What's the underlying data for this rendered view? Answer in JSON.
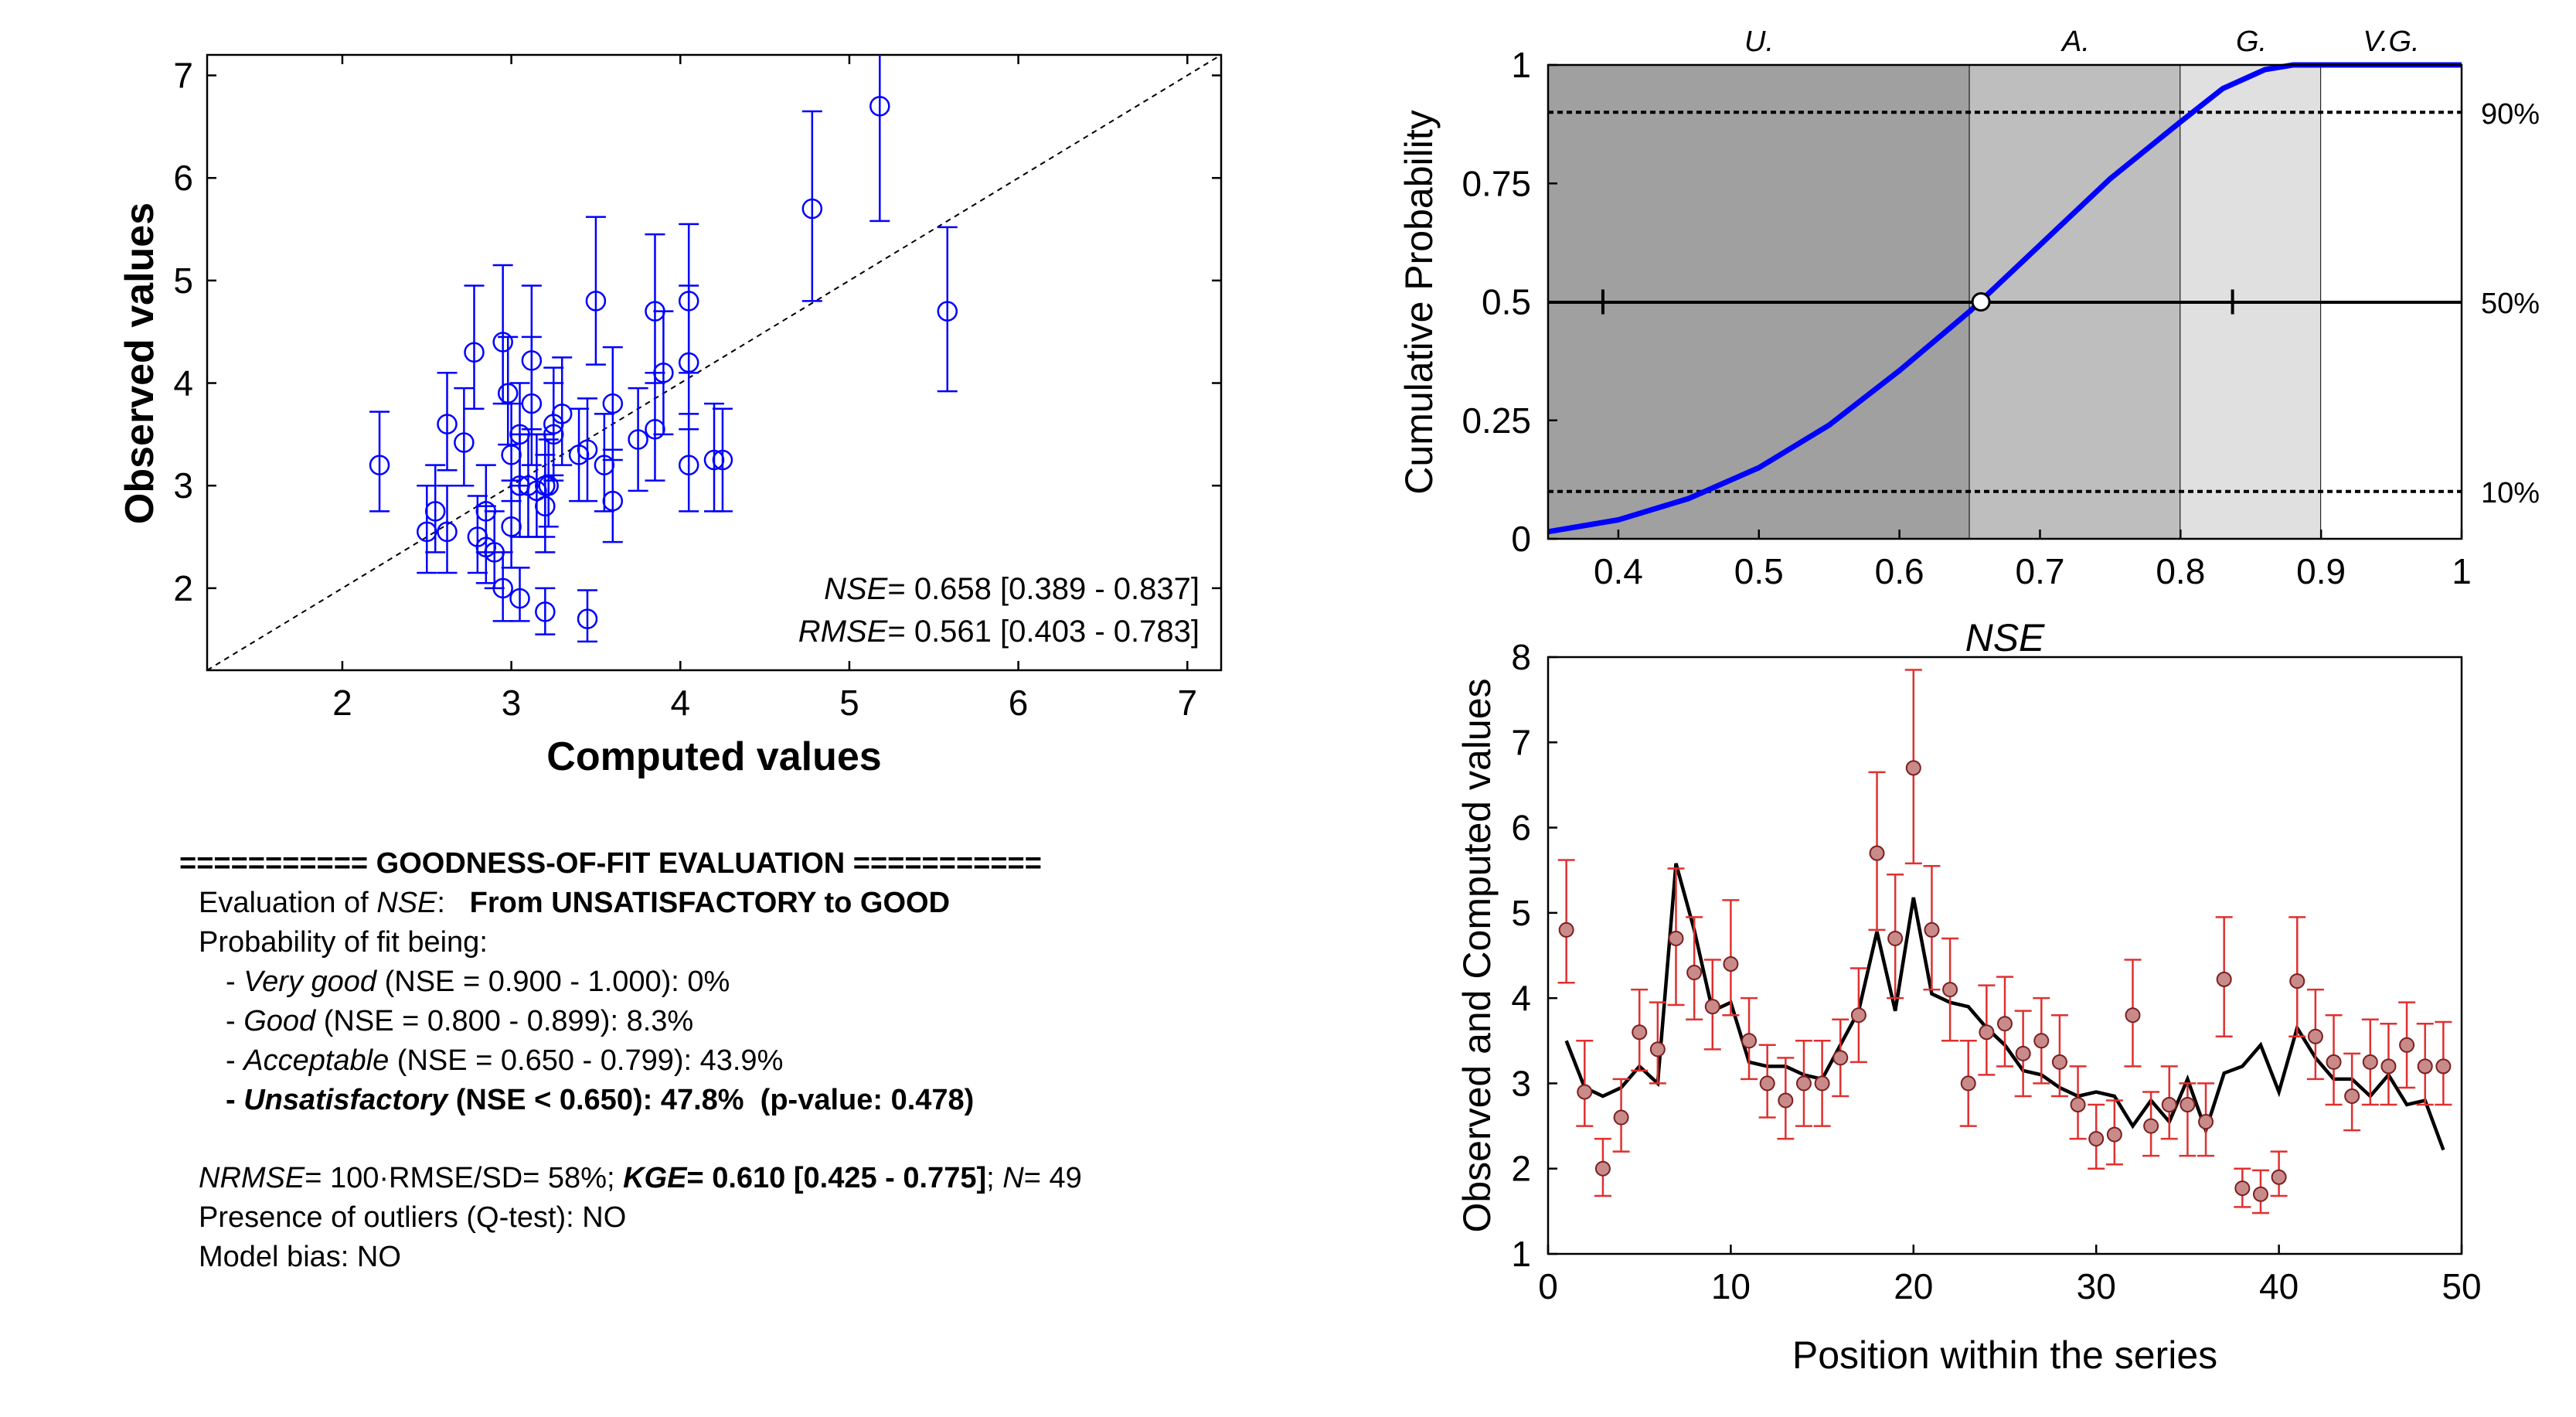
{
  "scatter_panel": {
    "xlabel": "Computed values",
    "ylabel": "Observed values",
    "stat_lines": [
      {
        "name": "NSE",
        "text": "= 0.658 [0.389 - 0.837]"
      },
      {
        "name": "RMSE",
        "text": "= 0.561 [0.403 - 0.783]"
      }
    ]
  },
  "cdf_panel": {
    "xlabel": "NSE",
    "ylabel": "Cumulative Probability",
    "class_labels": [
      "U.",
      "A.",
      "G.",
      "V.G."
    ],
    "percent_labels": [
      "90%",
      "50%",
      "10%"
    ]
  },
  "series_panel": {
    "xlabel": "Position within the series",
    "ylabel": "Observed and Computed values"
  },
  "report": {
    "header": "=========== GOODNESS-OF-FIT EVALUATION ===========",
    "eval_prefix": "Evaluation of ",
    "eval_metric": "NSE",
    "eval_sep": ":   ",
    "eval_result": "From UNSATISFACTORY to GOOD",
    "prob_title": "Probability of fit being:",
    "classes": [
      {
        "dash": "- ",
        "name": "Very good",
        "range": " (NSE = 0.900 - 1.000): 0%",
        "bold": false
      },
      {
        "dash": "- ",
        "name": "Good",
        "range": " (NSE = 0.800 - 0.899): 8.3%",
        "bold": false
      },
      {
        "dash": "- ",
        "name": "Acceptable",
        "range": " (NSE = 0.650 - 0.799): 43.9%",
        "bold": false
      },
      {
        "dash": "- ",
        "name": "Unsatisfactory",
        "range": " (NSE < 0.650): 47.8%  (p-value: 0.478)",
        "bold": true
      }
    ],
    "nrmse_label": "NRMSE",
    "nrmse_text": "= 100·RMSE/SD= 58%; ",
    "kge_label": "KGE",
    "kge_text": "= 0.610 [0.425 - 0.775]",
    "n_sep": "; ",
    "n_label": "N",
    "n_text": "= 49",
    "outliers": "Presence of outliers (Q-test): NO",
    "bias": "Model bias: NO"
  },
  "chart_data": [
    {
      "type": "scatter",
      "title": "",
      "xlabel": "Computed values",
      "ylabel": "Observed values",
      "xlim": [
        1.2,
        7.2
      ],
      "ylim": [
        1.2,
        7.2
      ],
      "xticks": [
        2,
        3,
        4,
        5,
        6,
        7
      ],
      "yticks": [
        2,
        3,
        4,
        5,
        6,
        7
      ],
      "reference_line": "1:1 dashed",
      "marker_color": "#0000ff",
      "points": [
        {
          "x": 3.5,
          "y": 4.8,
          "lo": 4.18,
          "hi": 5.62
        },
        {
          "x": 3.15,
          "y": 2.95,
          "lo": 2.5,
          "hi": 3.5
        },
        {
          "x": 2.95,
          "y": 2.0,
          "lo": 1.68,
          "hi": 2.35
        },
        {
          "x": 3.0,
          "y": 2.6,
          "lo": 2.2,
          "hi": 3.05
        },
        {
          "x": 2.62,
          "y": 3.6,
          "lo": 3.15,
          "hi": 4.1
        },
        {
          "x": 2.72,
          "y": 3.42,
          "lo": 3.0,
          "hi": 3.95
        },
        {
          "x": 5.58,
          "y": 4.7,
          "lo": 3.92,
          "hi": 5.52
        },
        {
          "x": 2.78,
          "y": 4.3,
          "lo": 3.75,
          "hi": 4.95
        },
        {
          "x": 2.98,
          "y": 3.9,
          "lo": 3.4,
          "hi": 4.45
        },
        {
          "x": 2.95,
          "y": 4.4,
          "lo": 3.8,
          "hi": 5.15
        },
        {
          "x": 3.25,
          "y": 3.5,
          "lo": 3.05,
          "hi": 4.0
        },
        {
          "x": 3.22,
          "y": 3.0,
          "lo": 2.6,
          "hi": 3.45
        },
        {
          "x": 3.2,
          "y": 2.8,
          "lo": 2.35,
          "hi": 3.3
        },
        {
          "x": 3.2,
          "y": 3.0,
          "lo": 2.5,
          "hi": 3.5
        },
        {
          "x": 3.05,
          "y": 3.0,
          "lo": 2.5,
          "hi": 3.5
        },
        {
          "x": 3.4,
          "y": 3.3,
          "lo": 2.85,
          "hi": 3.75
        },
        {
          "x": 3.6,
          "y": 3.8,
          "lo": 3.25,
          "hi": 4.35
        },
        {
          "x": 4.78,
          "y": 5.7,
          "lo": 4.8,
          "hi": 6.65
        },
        {
          "x": 3.85,
          "y": 4.7,
          "lo": 4.0,
          "hi": 5.45
        },
        {
          "x": 5.18,
          "y": 6.7,
          "lo": 5.58,
          "hi": 7.85
        },
        {
          "x": 4.05,
          "y": 4.8,
          "lo": 4.1,
          "hi": 5.55
        },
        {
          "x": 3.9,
          "y": 4.1,
          "lo": 3.5,
          "hi": 4.7
        },
        {
          "x": 3.1,
          "y": 3.0,
          "lo": 2.5,
          "hi": 3.5
        },
        {
          "x": 3.25,
          "y": 3.6,
          "lo": 3.1,
          "hi": 4.15
        },
        {
          "x": 3.3,
          "y": 3.7,
          "lo": 3.2,
          "hi": 4.25
        },
        {
          "x": 3.45,
          "y": 3.35,
          "lo": 2.85,
          "hi": 3.85
        },
        {
          "x": 3.05,
          "y": 3.5,
          "lo": 3.0,
          "hi": 4.0
        },
        {
          "x": 3.0,
          "y": 3.3,
          "lo": 2.85,
          "hi": 3.8
        },
        {
          "x": 2.85,
          "y": 2.75,
          "lo": 2.35,
          "hi": 3.2
        },
        {
          "x": 2.9,
          "y": 2.35,
          "lo": 2.0,
          "hi": 2.75
        },
        {
          "x": 2.85,
          "y": 2.4,
          "lo": 2.05,
          "hi": 2.8
        },
        {
          "x": 3.12,
          "y": 3.8,
          "lo": 3.2,
          "hi": 4.45
        },
        {
          "x": 2.8,
          "y": 2.5,
          "lo": 2.15,
          "hi": 2.9
        },
        {
          "x": 2.55,
          "y": 2.75,
          "lo": 2.35,
          "hi": 3.2
        },
        {
          "x": 2.5,
          "y": 2.55,
          "lo": 2.15,
          "hi": 3.0
        },
        {
          "x": 2.62,
          "y": 2.55,
          "lo": 2.15,
          "hi": 3.0
        },
        {
          "x": 3.12,
          "y": 4.22,
          "lo": 3.55,
          "hi": 4.95
        },
        {
          "x": 3.2,
          "y": 1.77,
          "lo": 1.55,
          "hi": 2.0
        },
        {
          "x": 3.45,
          "y": 1.7,
          "lo": 1.48,
          "hi": 1.98
        },
        {
          "x": 3.05,
          "y": 1.9,
          "lo": 1.68,
          "hi": 2.2
        },
        {
          "x": 4.05,
          "y": 4.2,
          "lo": 3.55,
          "hi": 4.95
        },
        {
          "x": 3.85,
          "y": 3.55,
          "lo": 3.05,
          "hi": 4.1
        },
        {
          "x": 4.2,
          "y": 3.25,
          "lo": 2.75,
          "hi": 3.8
        },
        {
          "x": 3.6,
          "y": 2.85,
          "lo": 2.45,
          "hi": 3.35
        },
        {
          "x": 4.25,
          "y": 3.25,
          "lo": 2.75,
          "hi": 3.75
        },
        {
          "x": 3.55,
          "y": 3.2,
          "lo": 2.75,
          "hi": 3.7
        },
        {
          "x": 3.75,
          "y": 3.45,
          "lo": 2.95,
          "hi": 3.95
        },
        {
          "x": 4.05,
          "y": 3.2,
          "lo": 2.75,
          "hi": 3.7
        },
        {
          "x": 2.22,
          "y": 3.2,
          "lo": 2.75,
          "hi": 3.72
        }
      ],
      "annotations": [
        "NSE = 0.658 [0.389 - 0.837]",
        "RMSE= 0.561 [0.403 - 0.783]"
      ]
    },
    {
      "type": "line",
      "title": "",
      "xlabel": "NSE",
      "ylabel": "Cumulative Probability",
      "xlim": [
        0.35,
        1.0
      ],
      "ylim": [
        0,
        1
      ],
      "xticks": [
        0.4,
        0.5,
        0.6,
        0.7,
        0.8,
        0.9,
        1
      ],
      "yticks": [
        0,
        0.25,
        0.5,
        0.75,
        1
      ],
      "line_color": "#0000ff",
      "series": [
        {
          "x": [
            0.35,
            0.4,
            0.45,
            0.5,
            0.55,
            0.6,
            0.65,
            0.7,
            0.75,
            0.8,
            0.83,
            0.86,
            0.88,
            0.9,
            1.0
          ],
          "y": [
            0.015,
            0.04,
            0.085,
            0.15,
            0.24,
            0.355,
            0.48,
            0.62,
            0.76,
            0.88,
            0.95,
            0.99,
            1.0,
            1.0,
            1.0
          ]
        }
      ],
      "bands": [
        {
          "label": "U.",
          "from": 0.35,
          "to": 0.65,
          "color": "#a0a0a0"
        },
        {
          "label": "A.",
          "from": 0.65,
          "to": 0.8,
          "color": "#bebebe"
        },
        {
          "label": "G.",
          "from": 0.8,
          "to": 0.9,
          "color": "#e0e0e0"
        },
        {
          "label": "V.G.",
          "from": 0.9,
          "to": 1.0,
          "color": "#ffffff"
        }
      ],
      "percentile_lines": [
        {
          "y": 0.9,
          "label": "90%"
        },
        {
          "y": 0.5,
          "label": "50%"
        },
        {
          "y": 0.1,
          "label": "10%"
        }
      ],
      "median_marker": {
        "x": 0.658,
        "y": 0.5
      },
      "ci_markers": [
        0.389,
        0.837
      ]
    },
    {
      "type": "line",
      "title": "",
      "xlabel": "Position within the series",
      "ylabel": "Observed and Computed values",
      "xlim": [
        0,
        50
      ],
      "ylim": [
        1,
        8
      ],
      "xticks": [
        0,
        10,
        20,
        30,
        40,
        50
      ],
      "yticks": [
        1,
        2,
        3,
        4,
        5,
        6,
        7,
        8
      ],
      "series": [
        {
          "name": "",
          "color": "#000000",
          "values": [
            3.5,
            2.95,
            2.85,
            2.95,
            3.2,
            3.0,
            5.58,
            4.8,
            3.85,
            3.95,
            3.25,
            3.2,
            3.2,
            3.1,
            3.05,
            3.45,
            3.85,
            4.78,
            3.85,
            5.18,
            4.05,
            3.95,
            3.9,
            3.65,
            3.45,
            3.15,
            3.1,
            2.95,
            2.85,
            2.9,
            2.85,
            2.5,
            2.8,
            2.55,
            3.05,
            2.45,
            3.12,
            3.2,
            3.45,
            2.9,
            3.65,
            3.3,
            3.05,
            3.05,
            2.85,
            3.1,
            2.75,
            2.8,
            2.22
          ]
        },
        {
          "name": "",
          "color": "#e03030",
          "marker": "circle",
          "values": [
            4.8,
            2.9,
            2.0,
            2.6,
            3.6,
            3.4,
            4.7,
            4.3,
            3.9,
            4.4,
            3.5,
            3.0,
            2.8,
            3.0,
            3.0,
            3.3,
            3.8,
            5.7,
            4.7,
            6.7,
            4.8,
            4.1,
            3.0,
            3.6,
            3.7,
            3.35,
            3.5,
            3.25,
            2.75,
            2.35,
            2.4,
            3.8,
            2.5,
            2.75,
            2.75,
            2.55,
            4.22,
            1.77,
            1.7,
            1.9,
            4.2,
            3.55,
            3.25,
            2.85,
            3.25,
            3.2,
            3.45,
            3.2,
            3.2
          ]
        }
      ]
    }
  ]
}
